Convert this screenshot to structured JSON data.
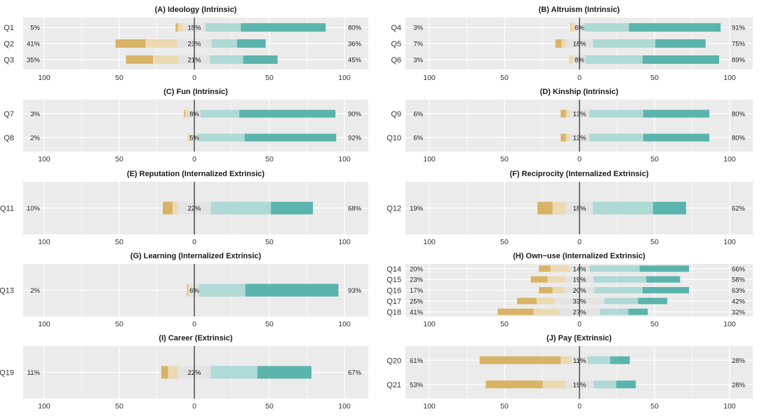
{
  "chart_data": {
    "type": "bar",
    "subtype": "diverging-stacked-likert",
    "colors": {
      "panel_bg": "#EBEBEB",
      "grid": "#FFFFFF",
      "strong_negative": "#D8B365",
      "weak_negative": "#EBD9B2",
      "neutral": "#E3E3E3",
      "weak_positive": "#AED9D5",
      "strong_positive": "#5AB4AC",
      "zero_line": "#333333"
    },
    "x_ticks": [
      "100",
      "50",
      "0",
      "50",
      "100"
    ],
    "x_tick_values": [
      -100,
      -50,
      0,
      50,
      100
    ],
    "xlim": [
      -114,
      114
    ],
    "grid": true,
    "segment_order": [
      "strong_negative",
      "weak_negative",
      "neutral",
      "weak_positive",
      "strong_positive"
    ],
    "panels": [
      {
        "title": "(A) Ideology (Intrinsic)",
        "questions": [
          {
            "label": "Q1",
            "neg_label": "5%",
            "neu_label": "15%",
            "pos_label": "80%",
            "segments": [
              1.5,
              3.5,
              15,
              23.5,
              56.5
            ]
          },
          {
            "label": "Q2",
            "neg_label": "41%",
            "neu_label": "23%",
            "pos_label": "36%",
            "segments": [
              20,
              21,
              23,
              17,
              19
            ]
          },
          {
            "label": "Q3",
            "neg_label": "35%",
            "neu_label": "21%",
            "pos_label": "45%",
            "segments": [
              18,
              17,
              21,
              22,
              23
            ]
          }
        ]
      },
      {
        "title": "(B) Altruism (Intrinsic)",
        "questions": [
          {
            "label": "Q4",
            "neg_label": "3%",
            "neu_label": "6%",
            "pos_label": "91%",
            "segments": [
              0.5,
              2.5,
              6,
              30,
              61
            ]
          },
          {
            "label": "Q5",
            "neg_label": "7%",
            "neu_label": "18%",
            "pos_label": "75%",
            "segments": [
              4,
              3,
              18,
              41.5,
              33.5
            ]
          },
          {
            "label": "Q6",
            "neg_label": "3%",
            "neu_label": "8%",
            "pos_label": "89%",
            "segments": [
              0,
              3,
              8,
              38,
              51
            ]
          }
        ]
      },
      {
        "title": "(C) Fun (Intrinsic)",
        "questions": [
          {
            "label": "Q7",
            "neg_label": "3%",
            "neu_label": "8%",
            "pos_label": "90%",
            "segments": [
              0.7,
              2.3,
              8,
              26,
              64
            ]
          },
          {
            "label": "Q8",
            "neg_label": "2%",
            "neu_label": "5%",
            "pos_label": "92%",
            "segments": [
              0,
              2,
              5,
              31,
              61
            ]
          }
        ]
      },
      {
        "title": "(D) Kinship (Intrinsic)",
        "questions": [
          {
            "label": "Q9",
            "neg_label": "6%",
            "neu_label": "13%",
            "pos_label": "80%",
            "segments": [
              3.5,
              2.5,
              13,
              36,
              44
            ]
          },
          {
            "label": "Q10",
            "neg_label": "6%",
            "neu_label": "13%",
            "pos_label": "80%",
            "segments": [
              3.5,
              2.5,
              13,
              36,
              44
            ]
          }
        ]
      },
      {
        "title": "(E) Reputation  (Internalized Extrinsic)",
        "questions": [
          {
            "label": "Q11",
            "neg_label": "10%",
            "neu_label": "22%",
            "pos_label": "68%",
            "segments": [
              6.5,
              3.5,
              22,
              40,
              28
            ]
          }
        ]
      },
      {
        "title": "(F) Reciprocity (Internalized Extrinsic)",
        "questions": [
          {
            "label": "Q12",
            "neg_label": "19%",
            "neu_label": "18%",
            "pos_label": "62%",
            "segments": [
              10,
              9,
              18,
              40,
              22
            ]
          }
        ]
      },
      {
        "title": "(G) Learning (Internalized Extrinsic)",
        "questions": [
          {
            "label": "Q13",
            "neg_label": "2%",
            "neu_label": "6%",
            "pos_label": "93%",
            "segments": [
              0.5,
              1.5,
              6,
              31,
              62
            ]
          }
        ]
      },
      {
        "title": "(H) Own−use (Internalized Extrinsic)",
        "questions": [
          {
            "label": "Q14",
            "neg_label": "20%",
            "neu_label": "14%",
            "pos_label": "66%",
            "segments": [
              7.7,
              12.3,
              14,
              33,
              33
            ]
          },
          {
            "label": "Q15",
            "neg_label": "23%",
            "neu_label": "19%",
            "pos_label": "58%",
            "segments": [
              11.2,
              11.8,
              19,
              35,
              22.5
            ]
          },
          {
            "label": "Q16",
            "neg_label": "17%",
            "neu_label": "20%",
            "pos_label": "63%",
            "segments": [
              9,
              8,
              20,
              32,
              31
            ]
          },
          {
            "label": "Q17",
            "neg_label": "25%",
            "neu_label": "33%",
            "pos_label": "42%",
            "segments": [
              13,
              12,
              33,
              22.5,
              19.5
            ]
          },
          {
            "label": "Q18",
            "neg_label": "41%",
            "neu_label": "27%",
            "pos_label": "32%",
            "segments": [
              24,
              17,
              27,
              19,
              13
            ]
          }
        ]
      },
      {
        "title": "(I) Career (Extrinsic)",
        "questions": [
          {
            "label": "Q19",
            "neg_label": "11%",
            "neu_label": "22%",
            "pos_label": "67%",
            "segments": [
              4.5,
              6.5,
              22,
              31,
              36
            ]
          }
        ]
      },
      {
        "title": "(J) Pay (Extrinsic)",
        "questions": [
          {
            "label": "Q20",
            "neg_label": "61%",
            "neu_label": "11%",
            "pos_label": "28%",
            "segments": [
              54,
              7,
              11,
              15,
              13
            ]
          },
          {
            "label": "Q21",
            "neg_label": "53%",
            "neu_label": "19%",
            "pos_label": "28%",
            "segments": [
              38,
              15,
              19,
              15,
              13
            ]
          }
        ]
      }
    ]
  }
}
